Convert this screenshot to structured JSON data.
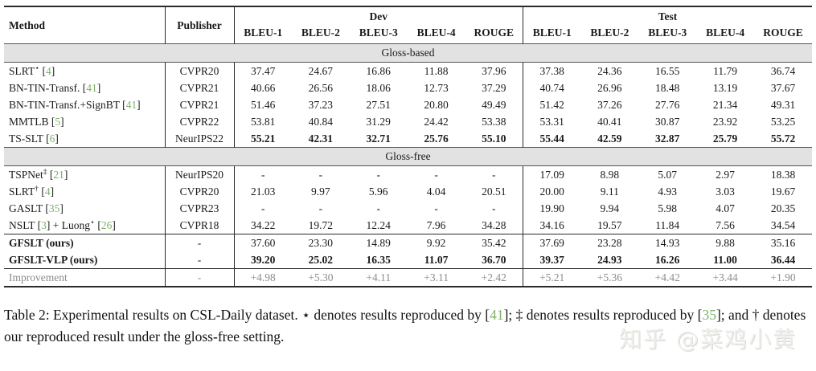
{
  "colors": {
    "citation_green": "#7fb069",
    "section_band_bg": "#e2e2e2",
    "improvement_text_gray": "#8c8c8c"
  },
  "table": {
    "header": {
      "method": "Method",
      "publisher": "Publisher",
      "dev_group": "Dev",
      "test_group": "Test",
      "metrics": [
        "BLEU-1",
        "BLEU-2",
        "BLEU-3",
        "BLEU-4",
        "ROUGE"
      ]
    },
    "sections": [
      {
        "label": "Gloss-based",
        "rows": [
          {
            "method": [
              {
                "text": "SLRT"
              },
              {
                "sup": "⋆"
              },
              {
                "text": " "
              },
              {
                "cite": "4"
              }
            ],
            "publisher": "CVPR20",
            "dev": [
              "37.47",
              "24.67",
              "16.86",
              "11.88",
              "37.96"
            ],
            "test": [
              "37.38",
              "24.36",
              "16.55",
              "11.79",
              "36.74"
            ]
          },
          {
            "method": [
              {
                "text": "BN-TIN-Transf. "
              },
              {
                "cite": "41"
              }
            ],
            "publisher": "CVPR21",
            "dev": [
              "40.66",
              "26.56",
              "18.06",
              "12.73",
              "37.29"
            ],
            "test": [
              "40.74",
              "26.96",
              "18.48",
              "13.19",
              "37.67"
            ]
          },
          {
            "method": [
              {
                "text": "BN-TIN-Transf.+SignBT "
              },
              {
                "cite": "41"
              }
            ],
            "publisher": "CVPR21",
            "dev": [
              "51.46",
              "37.23",
              "27.51",
              "20.80",
              "49.49"
            ],
            "test": [
              "51.42",
              "37.26",
              "27.76",
              "21.34",
              "49.31"
            ]
          },
          {
            "method": [
              {
                "text": "MMTLB "
              },
              {
                "cite": "5"
              }
            ],
            "publisher": "CVPR22",
            "dev": [
              "53.81",
              "40.84",
              "31.29",
              "24.42",
              "53.38"
            ],
            "test": [
              "53.31",
              "40.41",
              "30.87",
              "23.92",
              "53.25"
            ]
          },
          {
            "method": [
              {
                "text": "TS-SLT "
              },
              {
                "cite": "6"
              }
            ],
            "publisher": "NeurIPS22",
            "bold_values": true,
            "dev": [
              "55.21",
              "42.31",
              "32.71",
              "25.76",
              "55.10"
            ],
            "test": [
              "55.44",
              "42.59",
              "32.87",
              "25.79",
              "55.72"
            ]
          }
        ]
      },
      {
        "label": "Gloss-free",
        "rows": [
          {
            "method": [
              {
                "text": "TSPNet"
              },
              {
                "sup": "‡"
              },
              {
                "text": " "
              },
              {
                "cite": "21"
              }
            ],
            "publisher": "NeurIPS20",
            "dev": [
              "-",
              "-",
              "-",
              "-",
              "-"
            ],
            "test": [
              "17.09",
              "8.98",
              "5.07",
              "2.97",
              "18.38"
            ]
          },
          {
            "method": [
              {
                "text": "SLRT"
              },
              {
                "sup": "†"
              },
              {
                "text": " "
              },
              {
                "cite": "4"
              }
            ],
            "publisher": "CVPR20",
            "dev": [
              "21.03",
              "9.97",
              "5.96",
              "4.04",
              "20.51"
            ],
            "test": [
              "20.00",
              "9.11",
              "4.93",
              "3.03",
              "19.67"
            ]
          },
          {
            "method": [
              {
                "text": "GASLT "
              },
              {
                "cite": "35"
              }
            ],
            "publisher": "CVPR23",
            "dev": [
              "-",
              "-",
              "-",
              "-",
              "-"
            ],
            "test": [
              "19.90",
              "9.94",
              "5.98",
              "4.07",
              "20.35"
            ]
          },
          {
            "method": [
              {
                "text": "NSLT "
              },
              {
                "cite": "3"
              },
              {
                "text": " + Luong"
              },
              {
                "sup": "⋆"
              },
              {
                "text": " "
              },
              {
                "cite": "26"
              }
            ],
            "publisher": "CVPR18",
            "dev": [
              "34.22",
              "19.72",
              "12.24",
              "7.96",
              "34.28"
            ],
            "test": [
              "34.16",
              "19.57",
              "11.84",
              "7.56",
              "34.54"
            ]
          }
        ]
      }
    ],
    "ours_rows": [
      {
        "method": [
          {
            "text": "GFSLT (ours)"
          }
        ],
        "bold_method": true,
        "publisher": "-",
        "dev": [
          "37.60",
          "23.30",
          "14.89",
          "9.92",
          "35.42"
        ],
        "test": [
          "37.69",
          "23.28",
          "14.93",
          "9.88",
          "35.16"
        ]
      },
      {
        "method": [
          {
            "text": "GFSLT-VLP (ours)"
          }
        ],
        "bold_method": true,
        "bold_values": true,
        "publisher": "-",
        "dev": [
          "39.20",
          "25.02",
          "16.35",
          "11.07",
          "36.70"
        ],
        "test": [
          "39.37",
          "24.93",
          "16.26",
          "11.00",
          "36.44"
        ]
      }
    ],
    "improvement_row": {
      "method": [
        {
          "text": "Improvement"
        }
      ],
      "publisher": "-",
      "gray": true,
      "dev": [
        "+4.98",
        "+5.30",
        "+4.11",
        "+3.11",
        "+2.42"
      ],
      "test": [
        "+5.21",
        "+5.36",
        "+4.42",
        "+3.44",
        "+1.90"
      ]
    }
  },
  "caption": [
    {
      "text": "Table 2: Experimental results on CSL-Daily dataset. ⋆ denotes results reproduced by "
    },
    {
      "cite": "41"
    },
    {
      "text": "; ‡ denotes results reproduced by "
    },
    {
      "cite": "35"
    },
    {
      "text": "; and † denotes our reproduced result under the gloss-free setting."
    }
  ],
  "watermark": "知乎 @菜鸡小黄"
}
